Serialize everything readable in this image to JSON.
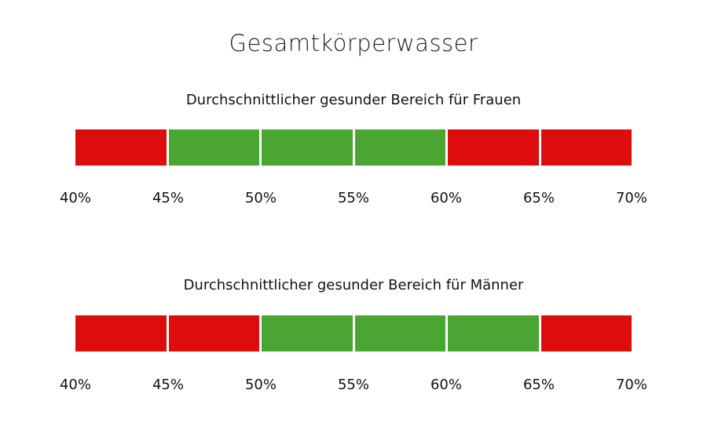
{
  "title": "Gesamtkörperwasser",
  "colors": {
    "healthy": "#4aa532",
    "unhealthy": "#dd0d0d"
  },
  "chart_data": [
    {
      "type": "bar",
      "title": "Durchschnittlicher gesunder Bereich für Frauen",
      "tick_labels": [
        "40%",
        "45%",
        "50%",
        "55%",
        "60%",
        "65%",
        "70%"
      ],
      "xlim": [
        40,
        70
      ],
      "segments": [
        {
          "from": 40,
          "to": 45,
          "status": "unhealthy"
        },
        {
          "from": 45,
          "to": 50,
          "status": "healthy"
        },
        {
          "from": 50,
          "to": 55,
          "status": "healthy"
        },
        {
          "from": 55,
          "to": 60,
          "status": "healthy"
        },
        {
          "from": 60,
          "to": 65,
          "status": "unhealthy"
        },
        {
          "from": 65,
          "to": 70,
          "status": "unhealthy"
        }
      ]
    },
    {
      "type": "bar",
      "title": "Durchschnittlicher gesunder Bereich für Männer",
      "tick_labels": [
        "40%",
        "45%",
        "50%",
        "55%",
        "60%",
        "65%",
        "70%"
      ],
      "xlim": [
        40,
        70
      ],
      "segments": [
        {
          "from": 40,
          "to": 45,
          "status": "unhealthy"
        },
        {
          "from": 45,
          "to": 50,
          "status": "unhealthy"
        },
        {
          "from": 50,
          "to": 55,
          "status": "healthy"
        },
        {
          "from": 55,
          "to": 60,
          "status": "healthy"
        },
        {
          "from": 60,
          "to": 65,
          "status": "healthy"
        },
        {
          "from": 65,
          "to": 70,
          "status": "unhealthy"
        }
      ]
    }
  ]
}
